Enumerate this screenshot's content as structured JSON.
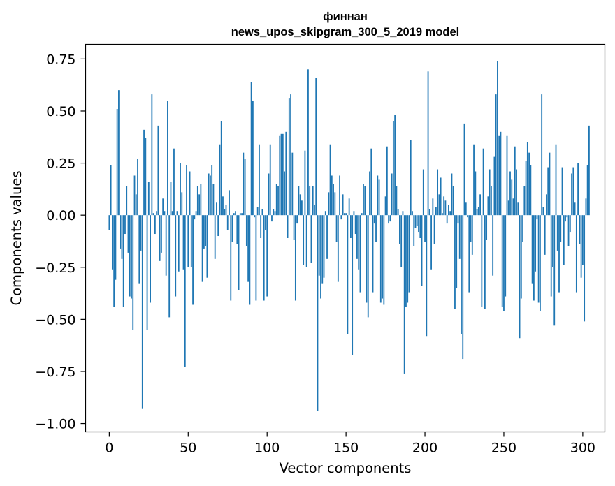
{
  "chart_data": {
    "type": "bar",
    "title": "финнан",
    "subtitle": "news_upos_skipgram_300_5_2019 model",
    "xlabel": "Vector components",
    "ylabel": "Components values",
    "xlim": [
      -15,
      314
    ],
    "ylim": [
      -1.04,
      0.82
    ],
    "xticks": [
      0,
      50,
      100,
      150,
      200,
      250,
      300
    ],
    "yticks": [
      -1.0,
      -0.75,
      -0.5,
      -0.25,
      0.0,
      0.25,
      0.5,
      0.75
    ],
    "xtick_labels": [
      "0",
      "50",
      "100",
      "150",
      "200",
      "250",
      "300"
    ],
    "ytick_labels": [
      "−1.00",
      "−0.75",
      "−0.50",
      "−0.25",
      "0.00",
      "0.25",
      "0.50",
      "0.75"
    ],
    "bar_color": "#1f77b4",
    "values": [
      -0.07,
      0.24,
      -0.26,
      -0.44,
      -0.31,
      0.51,
      0.6,
      -0.16,
      -0.21,
      -0.44,
      -0.09,
      0.14,
      -0.18,
      -0.39,
      -0.4,
      -0.55,
      0.19,
      0.1,
      0.27,
      -0.33,
      -0.17,
      -0.93,
      0.41,
      0.37,
      -0.55,
      0.16,
      -0.42,
      0.58,
      0.01,
      -0.09,
      0.02,
      0.43,
      -0.22,
      -0.18,
      0.08,
      0.02,
      -0.29,
      0.55,
      -0.49,
      0.16,
      0.02,
      0.32,
      -0.39,
      0.02,
      -0.27,
      0.25,
      0.11,
      -0.26,
      -0.73,
      0.24,
      -0.25,
      0.21,
      -0.25,
      -0.43,
      -0.02,
      0.02,
      0.14,
      0.1,
      0.15,
      -0.32,
      -0.16,
      -0.15,
      -0.3,
      0.2,
      0.19,
      0.24,
      0.15,
      -0.21,
      0.06,
      -0.1,
      0.34,
      0.45,
      0.09,
      0.03,
      0.05,
      -0.07,
      0.12,
      -0.41,
      -0.13,
      0.01,
      0.02,
      -0.14,
      -0.36,
      0.01,
      0.01,
      0.3,
      0.27,
      -0.15,
      -0.32,
      -0.43,
      0.64,
      0.55,
      -0.01,
      -0.41,
      0.04,
      0.34,
      -0.11,
      0.03,
      -0.41,
      -0.07,
      -0.39,
      0.2,
      0.34,
      -0.03,
      0.03,
      0.02,
      0.15,
      0.14,
      0.38,
      0.39,
      0.39,
      0.21,
      0.4,
      -0.11,
      0.56,
      0.58,
      0.3,
      -0.12,
      -0.41,
      -0.04,
      0.14,
      0.1,
      0.07,
      -0.24,
      0.31,
      -0.25,
      0.7,
      0.14,
      -0.23,
      0.14,
      0.05,
      0.66,
      -0.94,
      -0.29,
      -0.4,
      -0.33,
      -0.3,
      0.02,
      -0.21,
      0.11,
      0.34,
      0.19,
      0.15,
      0.11,
      -0.13,
      -0.32,
      0.19,
      -0.02,
      0.1,
      0.01,
      0.01,
      -0.57,
      0.08,
      -0.11,
      -0.67,
      0.02,
      -0.09,
      -0.21,
      -0.26,
      -0.37,
      0.01,
      0.15,
      0.14,
      -0.42,
      -0.49,
      0.21,
      0.32,
      -0.37,
      -0.04,
      -0.13,
      0.19,
      0.17,
      -0.42,
      -0.4,
      -0.43,
      0.09,
      0.33,
      -0.04,
      -0.03,
      0.2,
      0.45,
      0.48,
      0.14,
      0.03,
      -0.14,
      -0.25,
      0.02,
      -0.76,
      -0.44,
      -0.42,
      -0.37,
      0.36,
      0.02,
      -0.15,
      -0.06,
      -0.05,
      -0.08,
      -0.11,
      -0.34,
      0.22,
      -0.13,
      -0.58,
      0.69,
      0.03,
      -0.26,
      0.08,
      -0.14,
      0.04,
      0.22,
      0.1,
      0.18,
      0.01,
      0.09,
      0.07,
      -0.04,
      0.05,
      0.02,
      0.2,
      0.14,
      -0.45,
      -0.35,
      -0.04,
      -0.21,
      -0.57,
      -0.69,
      0.44,
      0.06,
      -0.01,
      -0.37,
      -0.13,
      -0.19,
      0.34,
      0.21,
      0.03,
      0.04,
      0.1,
      -0.44,
      0.32,
      -0.45,
      -0.12,
      0.09,
      0.22,
      0.14,
      -0.29,
      0.28,
      0.58,
      0.74,
      0.38,
      0.4,
      -0.44,
      -0.46,
      -0.39,
      0.38,
      0.07,
      0.21,
      0.17,
      0.08,
      0.33,
      0.22,
      0.06,
      -0.59,
      -0.4,
      -0.13,
      0.14,
      0.26,
      0.35,
      0.3,
      0.24,
      -0.33,
      -0.41,
      -0.27,
      -0.02,
      -0.42,
      -0.46,
      0.58,
      0.04,
      -0.19,
      0.1,
      0.23,
      0.3,
      -0.39,
      -0.25,
      -0.53,
      0.34,
      -0.17,
      -0.37,
      -0.13,
      0.23,
      -0.24,
      -0.03,
      -0.01,
      -0.15,
      -0.08,
      0.2,
      0.23,
      0.06,
      -0.37,
      0.25,
      -0.14,
      -0.3,
      -0.24,
      -0.51,
      0.08,
      0.24,
      0.43
    ]
  }
}
